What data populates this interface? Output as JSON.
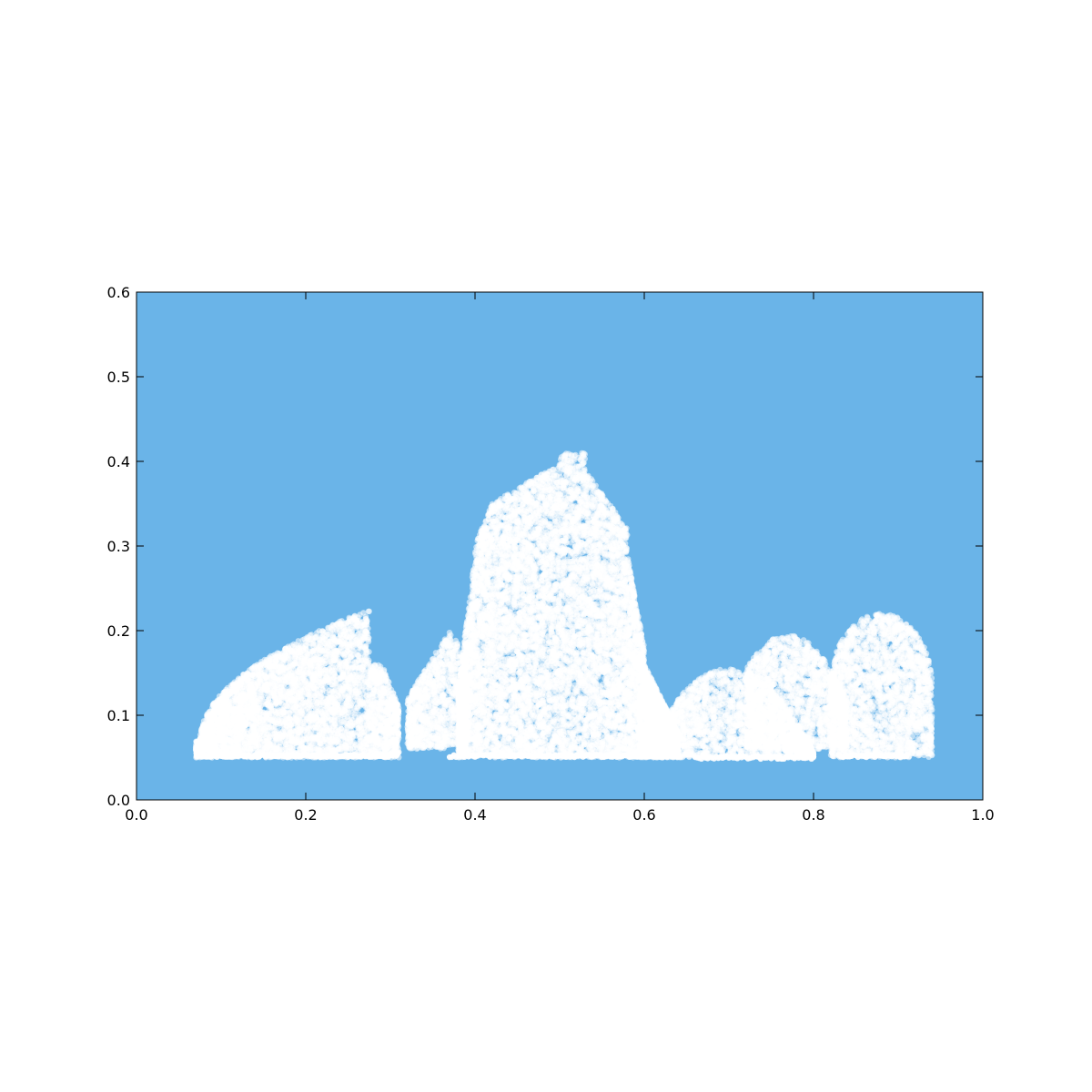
{
  "chart_data": {
    "type": "scatter",
    "title": "",
    "xlabel": "",
    "ylabel": "",
    "xlim": [
      0.0,
      1.0
    ],
    "ylim": [
      0.0,
      0.6
    ],
    "x_ticks": [
      "0.0",
      "0.2",
      "0.4",
      "0.6",
      "0.8",
      "1.0"
    ],
    "y_ticks": [
      "0.0",
      "0.1",
      "0.2",
      "0.3",
      "0.4",
      "0.5",
      "0.6"
    ],
    "grid": false,
    "legend": "none",
    "background_color": "#6ab4e8",
    "marker_color": "#ffffff",
    "clusters": [
      {
        "region": "left mound",
        "x_range": [
          0.07,
          0.31
        ],
        "y_range": [
          0.05,
          0.225
        ],
        "peak_x": 0.275,
        "peak_y": 0.225
      },
      {
        "region": "left notch",
        "x_range": [
          0.32,
          0.39
        ],
        "y_range": [
          0.06,
          0.2
        ],
        "peak_x": 0.37,
        "peak_y": 0.2
      },
      {
        "region": "central tower",
        "x_range": [
          0.38,
          0.64
        ],
        "y_range": [
          0.05,
          0.41
        ],
        "peak_x": 0.515,
        "peak_y": 0.41
      },
      {
        "region": "right small mound",
        "x_range": [
          0.61,
          0.8
        ],
        "y_range": [
          0.05,
          0.155
        ],
        "peak_x": 0.7,
        "peak_y": 0.155
      },
      {
        "region": "right mid mound",
        "x_range": [
          0.72,
          0.84
        ],
        "y_range": [
          0.06,
          0.195
        ],
        "peak_x": 0.75,
        "peak_y": 0.195
      },
      {
        "region": "right egg",
        "x_range": [
          0.82,
          0.94
        ],
        "y_range": [
          0.05,
          0.22
        ],
        "peak_x": 0.91,
        "peak_y": 0.22
      }
    ],
    "baselines": [
      {
        "x_range": [
          0.08,
          0.31
        ],
        "y": 0.052
      },
      {
        "x_range": [
          0.37,
          0.64
        ],
        "y": 0.052
      },
      {
        "x_range": [
          0.66,
          0.8
        ],
        "y": 0.05
      },
      {
        "x_range": [
          0.83,
          0.91
        ],
        "y": 0.052
      }
    ]
  }
}
